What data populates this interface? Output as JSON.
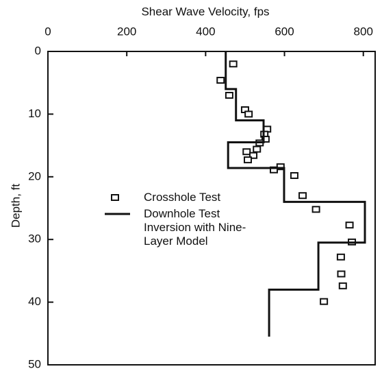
{
  "chart_data": {
    "type": "scatter",
    "title": "Shear Wave Velocity, fps",
    "y_label": "Depth, ft",
    "xlim": [
      0,
      830
    ],
    "xticks": [
      0,
      200,
      400,
      600,
      800
    ],
    "ylim": [
      0,
      50
    ],
    "yticks": [
      0,
      10,
      20,
      30,
      40,
      50
    ],
    "y_inverted": true,
    "legend": "left",
    "series": [
      {
        "name": "Crosshole Test",
        "type": "scatter",
        "color": "#111111",
        "x": [
          470,
          438,
          460,
          500,
          509,
          556,
          549,
          552,
          537,
          530,
          504,
          521,
          507,
          590,
          573,
          625,
          646,
          680,
          765,
          771,
          743,
          744,
          748,
          700
        ],
        "values": [
          2.0,
          4.6,
          7.0,
          9.3,
          10.0,
          12.4,
          13.2,
          14.0,
          14.6,
          15.6,
          16.0,
          16.6,
          17.3,
          18.4,
          18.9,
          19.8,
          23.0,
          25.2,
          27.7,
          30.4,
          32.8,
          35.5,
          37.4,
          39.9
        ]
      },
      {
        "name": "Downhole Test Inversion with Nine-Layer Model",
        "type": "line",
        "color": "#111111",
        "x": [
          451,
          451,
          477,
          477,
          547,
          547,
          457,
          457,
          599,
          599,
          804,
          804,
          686,
          686,
          561,
          561
        ],
        "values": [
          0,
          6,
          6,
          11,
          11,
          14.5,
          14.5,
          18.6,
          18.6,
          24,
          24,
          30.5,
          30.5,
          38,
          38,
          45.5
        ]
      }
    ]
  }
}
